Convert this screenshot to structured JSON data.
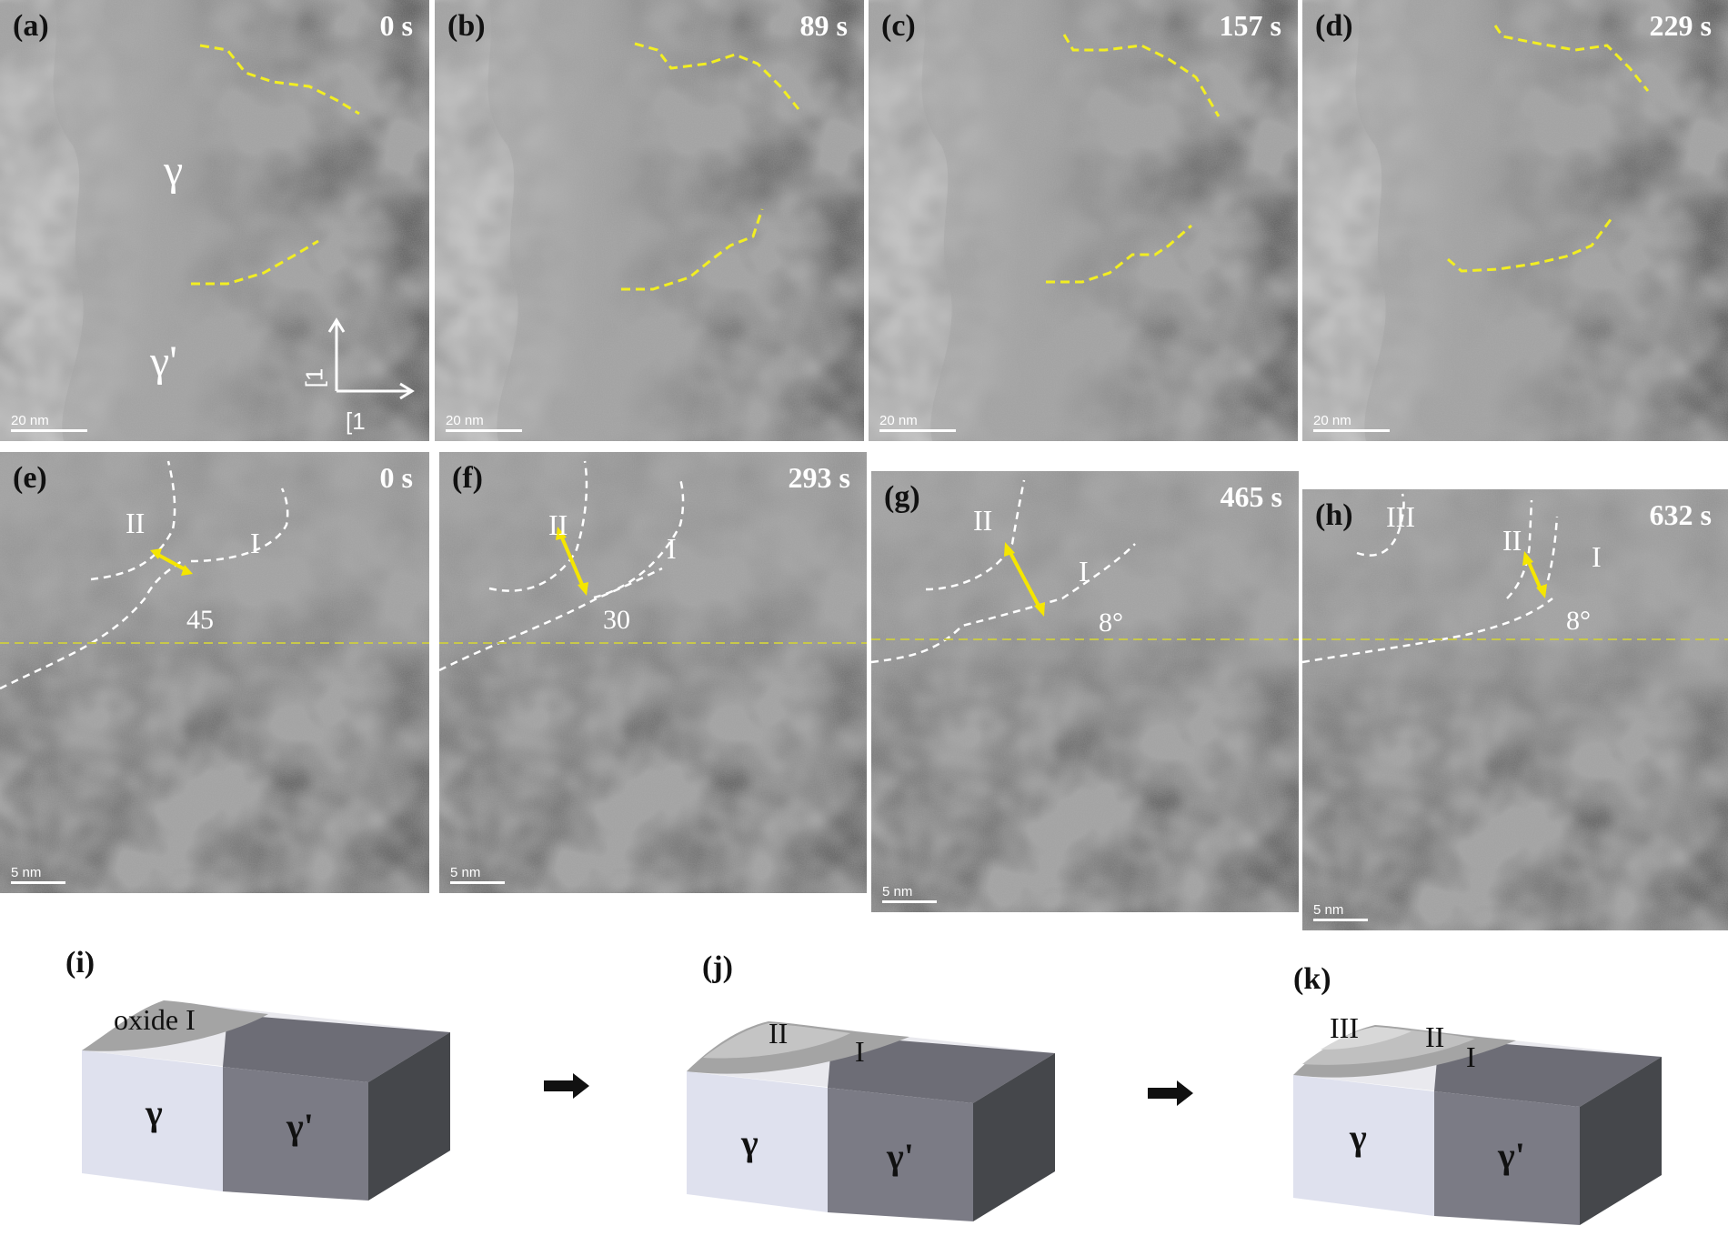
{
  "panels_top": [
    {
      "label": "(a)",
      "time": "0 s",
      "scale": "20 nm"
    },
    {
      "label": "(b)",
      "time": "89 s",
      "scale": "20 nm"
    },
    {
      "label": "(c)",
      "time": "157 s",
      "scale": "20 nm"
    },
    {
      "label": "(d)",
      "time": "229 s",
      "scale": "20 nm"
    }
  ],
  "panels_mid": [
    {
      "label": "(e)",
      "time": "0 s",
      "scale": "5 nm",
      "angle": "45"
    },
    {
      "label": "(f)",
      "time": "293 s",
      "scale": "5 nm",
      "angle": "30"
    },
    {
      "label": "(g)",
      "time": "465 s",
      "scale": "5 nm",
      "angle": "8°"
    },
    {
      "label": "(h)",
      "time": "632 s",
      "scale": "5 nm",
      "angle": "8°"
    }
  ],
  "phase_gamma": "γ",
  "phase_gamma_prime": "γ'",
  "axis_label_1": "[1",
  "axis_label_2": "[1",
  "roman": {
    "one": "I",
    "two": "II",
    "three": "III"
  },
  "schematics": [
    {
      "label": "(i)",
      "oxide_label": "oxide I",
      "gamma": "γ",
      "gamma_prime": "γ'"
    },
    {
      "label": "(j)",
      "ox2": "II",
      "ox1": "I",
      "gamma": "γ",
      "gamma_prime": "γ'"
    },
    {
      "label": "(k)",
      "ox3": "III",
      "ox2": "II",
      "ox1": "I",
      "gamma": "γ",
      "gamma_prime": "γ'"
    }
  ],
  "colors": {
    "dashed_yellow": "#f2ee22",
    "arrow_yellow": "#f5e600",
    "interface_line": "#c8c84a",
    "gamma_face": "#dfe1ee",
    "gamma_prime_face": "#7b7b85"
  }
}
